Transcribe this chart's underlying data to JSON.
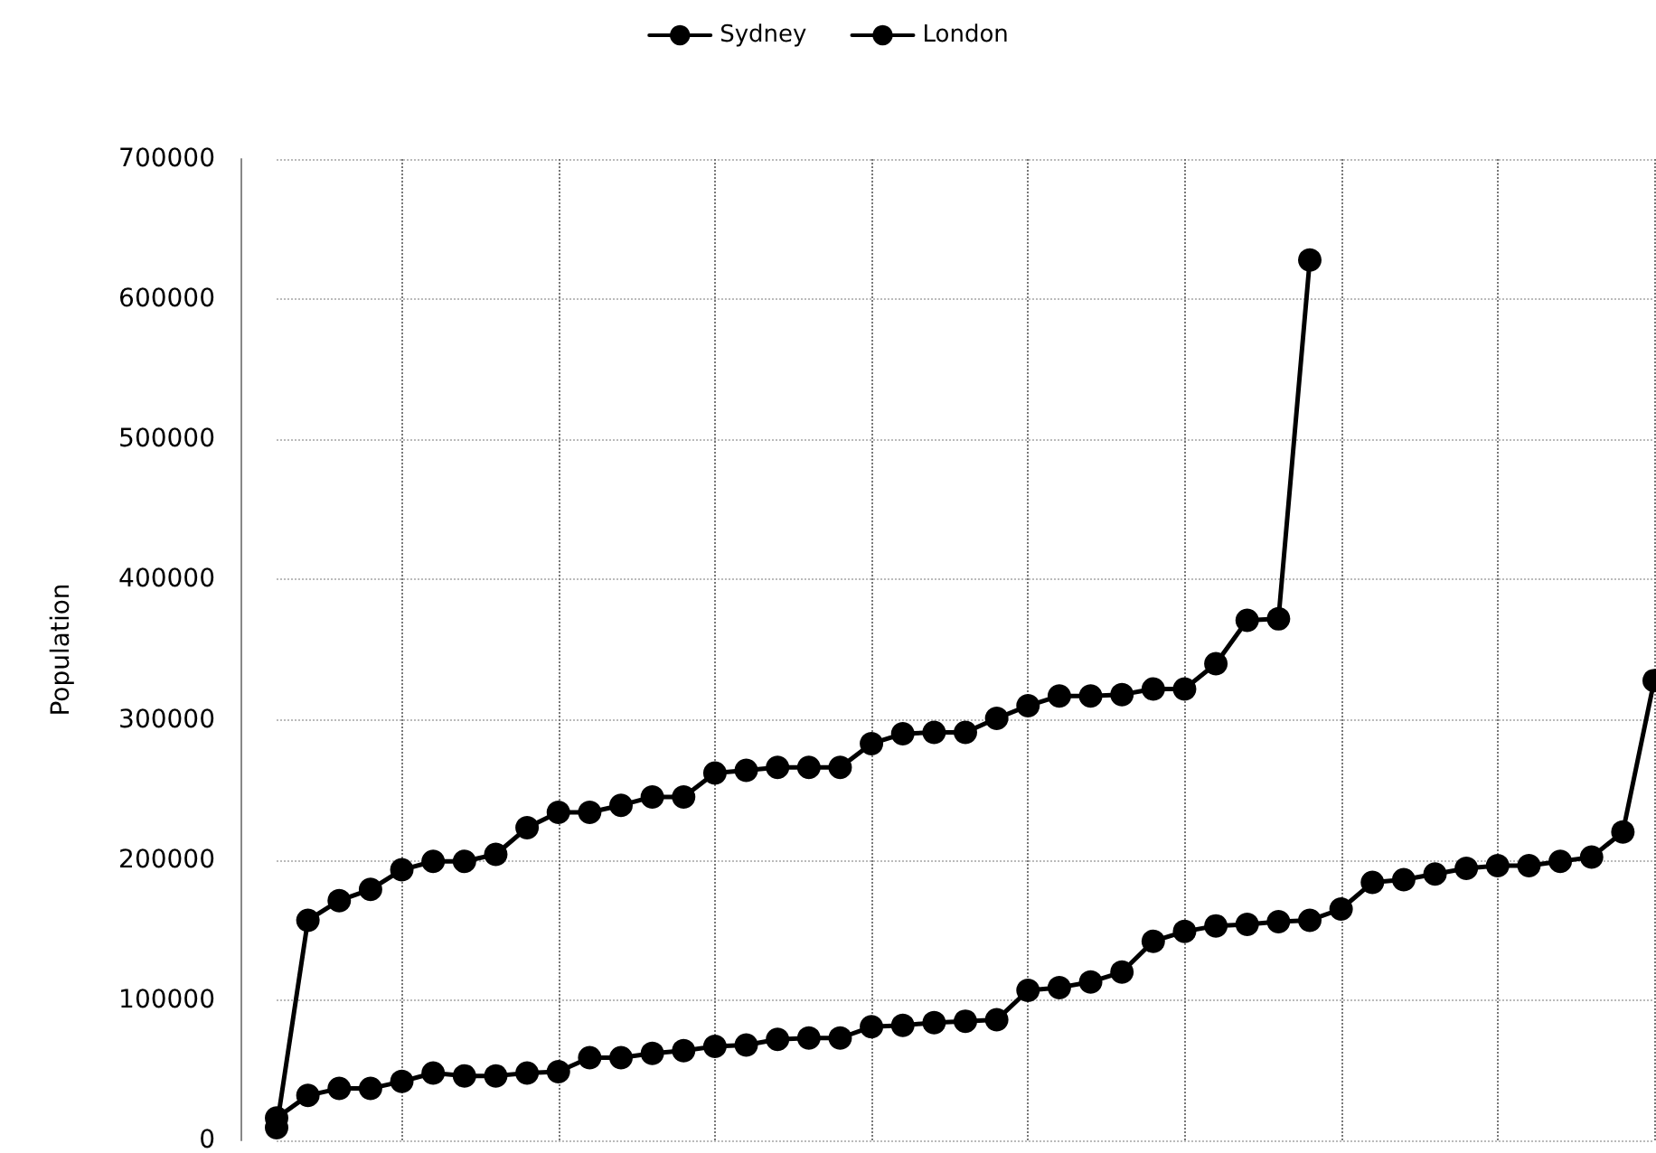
{
  "chart_data": {
    "type": "line",
    "ylabel": "Population",
    "categories": [
      null,
      null,
      null,
      null,
      null,
      null,
      null,
      null,
      null,
      null,
      null,
      null,
      null,
      null,
      null,
      null,
      null,
      null,
      null,
      null,
      null,
      null,
      null,
      null,
      null,
      null,
      null,
      null,
      null,
      null,
      null,
      null,
      null,
      null,
      null,
      null,
      null,
      null,
      null,
      null,
      null,
      null,
      null,
      null,
      null
    ],
    "series": [
      {
        "name": "Sydney",
        "color": "#000000",
        "values": [
          16000,
          32000,
          37000,
          37000,
          42000,
          48000,
          46000,
          46000,
          48000,
          49000,
          59000,
          59000,
          62000,
          64000,
          67000,
          68000,
          72000,
          73000,
          73000,
          81000,
          82000,
          84000,
          85000,
          86000,
          107000,
          109000,
          113000,
          120000,
          142000,
          149000,
          153000,
          154000,
          156000,
          157000,
          165000,
          184000,
          186000,
          190000,
          194000,
          196000,
          196000,
          199000,
          202000,
          220000,
          328000
        ]
      },
      {
        "name": "London",
        "color": "#000000",
        "values": [
          9000,
          157000,
          171000,
          179000,
          193000,
          199000,
          199000,
          204000,
          223000,
          234000,
          234000,
          239000,
          245000,
          245000,
          262000,
          264000,
          266000,
          266000,
          266000,
          283000,
          290000,
          291000,
          291000,
          301000,
          310000,
          317000,
          317000,
          318000,
          322000,
          322000,
          340000,
          371000,
          372000,
          628000,
          null,
          null,
          null,
          null,
          null,
          null,
          null,
          null,
          null,
          null,
          null
        ]
      }
    ],
    "ylim": [
      0,
      700000
    ],
    "yticks": [
      0,
      100000,
      200000,
      300000,
      400000,
      500000,
      600000,
      700000
    ],
    "tick_labels": "y",
    "grid": true,
    "legend": "top",
    "marker": "circle",
    "line_style": "solid"
  }
}
